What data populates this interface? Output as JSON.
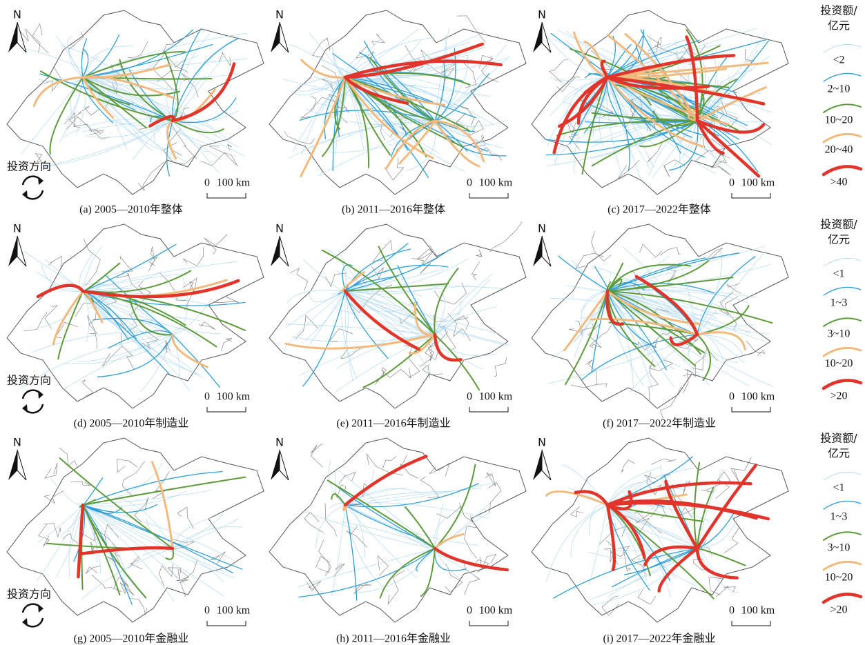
{
  "north": "N",
  "direction_label": "投资方向",
  "scale": {
    "zero": "0",
    "distance": "100 km"
  },
  "panels": [
    {
      "caption": "(a) 2005—2010年整体"
    },
    {
      "caption": "(b) 2011—2016年整体"
    },
    {
      "caption": "(c) 2017—2022年整体"
    },
    {
      "caption": "(d) 2005—2010年制造业"
    },
    {
      "caption": "(e) 2011—2016年制造业"
    },
    {
      "caption": "(f) 2017—2022年制造业"
    },
    {
      "caption": "(g) 2005—2010年金融业"
    },
    {
      "caption": "(h) 2011—2016年金融业"
    },
    {
      "caption": "(i) 2017—2022年金融业"
    }
  ],
  "legends": [
    {
      "title_line1": "投资额/",
      "title_line2": "亿元",
      "classes": [
        "<2",
        "2~10",
        "10~20",
        "20~40",
        ">40"
      ]
    },
    {
      "title_line1": "投资额/",
      "title_line2": "亿元",
      "classes": [
        "<1",
        "1~3",
        "3~10",
        "10~20",
        ">20"
      ]
    },
    {
      "title_line1": "投资额/",
      "title_line2": "亿元",
      "classes": [
        "<1",
        "1~3",
        "3~10",
        "10~20",
        ">20"
      ]
    }
  ]
}
